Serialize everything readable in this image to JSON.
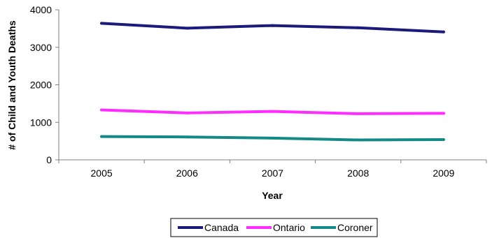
{
  "chart_data": {
    "type": "line",
    "title": "",
    "xlabel": "Year",
    "ylabel": "# of Child and Youth Deaths",
    "categories": [
      "2005",
      "2006",
      "2007",
      "2008",
      "2009"
    ],
    "ylim": [
      0,
      4000
    ],
    "yticks": [
      0,
      1000,
      2000,
      3000,
      4000
    ],
    "grid": false,
    "legend_position": "bottom",
    "series": [
      {
        "name": "Canada",
        "color": "#1c1a7a",
        "values": [
          3640,
          3510,
          3580,
          3520,
          3410
        ]
      },
      {
        "name": "Ontario",
        "color": "#ff2cff",
        "values": [
          1330,
          1250,
          1290,
          1230,
          1240
        ]
      },
      {
        "name": "Coroner",
        "color": "#138a85",
        "values": [
          620,
          610,
          580,
          530,
          540
        ]
      }
    ]
  }
}
